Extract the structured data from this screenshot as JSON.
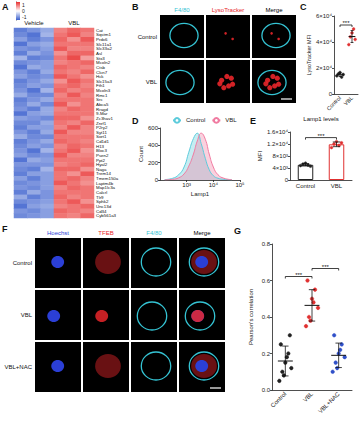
{
  "chart_data": [
    {
      "panel": "A",
      "type": "heatmap",
      "column_groups": [
        {
          "label": "Vehicle",
          "count": 3
        },
        {
          "label": "VBL",
          "count": 3
        }
      ],
      "rows": [
        "Cat",
        "Sqstm1",
        "Prdx6",
        "Slc11a1",
        "Slc33a2",
        "Asl",
        "Stx3",
        "Mcoln2",
        "Ctsb",
        "Clcn7",
        "Hck",
        "Slc15a3",
        "Fth1",
        "Mcoln3",
        "Rmc1",
        "Src",
        "Abca5",
        "Rragd",
        "9-Mar",
        "Zc3hav1",
        "Znrf1",
        "P2ry2",
        "Syt11",
        "Sort1",
        "Cd1d1",
        "H13",
        "Bloc3",
        "Psen2",
        "Ppt2",
        "Hyal2",
        "Naga",
        "Trem14",
        "Tmem150a",
        "Laptm4b",
        "Map1lc3a",
        "Calcrl",
        "Tlr9",
        "Sphk2",
        "Unc13d",
        "Cd34",
        "Cyb561a3"
      ],
      "cells": [
        [
          -1.2,
          -1.0,
          -0.8,
          0.9,
          1.1,
          1.0
        ],
        [
          -1.1,
          -1.3,
          -0.7,
          1.0,
          1.2,
          0.9
        ],
        [
          -0.9,
          -1.2,
          -1.0,
          1.1,
          0.8,
          1.2
        ],
        [
          -1.3,
          -0.9,
          -0.8,
          1.0,
          1.0,
          1.0
        ],
        [
          -1.0,
          -1.1,
          -0.9,
          1.2,
          0.9,
          0.9
        ],
        [
          -1.2,
          -0.8,
          -1.0,
          0.8,
          1.1,
          1.1
        ],
        [
          -0.7,
          -1.2,
          -1.1,
          1.0,
          1.3,
          0.7
        ],
        [
          -1.1,
          -1.0,
          -0.9,
          0.9,
          1.0,
          1.1
        ],
        [
          -1.3,
          -0.8,
          -0.9,
          1.1,
          1.0,
          0.9
        ],
        [
          -1.0,
          -1.2,
          -0.8,
          1.0,
          0.9,
          1.1
        ],
        [
          -0.9,
          -1.1,
          -1.0,
          1.2,
          1.0,
          0.8
        ],
        [
          -1.2,
          -1.0,
          -0.8,
          0.8,
          1.2,
          1.0
        ],
        [
          -1.1,
          -0.9,
          -1.0,
          1.0,
          1.1,
          0.9
        ],
        [
          -1.0,
          -1.3,
          -0.7,
          1.1,
          0.9,
          1.0
        ],
        [
          -0.8,
          -1.1,
          -1.1,
          0.9,
          1.2,
          0.9
        ],
        [
          -1.2,
          -1.0,
          -0.8,
          1.0,
          1.0,
          1.0
        ],
        [
          -1.1,
          -0.8,
          -1.1,
          1.2,
          0.8,
          1.0
        ],
        [
          -1.0,
          -1.2,
          -0.8,
          0.9,
          1.1,
          1.0
        ],
        [
          -1.3,
          -0.9,
          -0.8,
          1.0,
          1.0,
          1.0
        ],
        [
          -0.9,
          -1.0,
          -1.1,
          1.1,
          1.1,
          0.8
        ],
        [
          -1.1,
          -1.1,
          -0.8,
          1.0,
          0.9,
          1.1
        ],
        [
          -1.2,
          -0.9,
          -0.9,
          0.9,
          1.2,
          0.9
        ],
        [
          -1.0,
          -1.2,
          -0.8,
          1.2,
          0.9,
          0.9
        ],
        [
          -0.8,
          -1.1,
          -1.1,
          1.0,
          1.0,
          1.0
        ],
        [
          -1.2,
          -1.0,
          -0.8,
          1.1,
          1.0,
          0.9
        ],
        [
          -1.1,
          -0.9,
          -1.0,
          0.9,
          1.1,
          1.0
        ],
        [
          -1.0,
          -1.3,
          -0.7,
          1.0,
          1.2,
          0.8
        ],
        [
          -0.9,
          -1.1,
          -1.0,
          1.2,
          0.9,
          0.9
        ],
        [
          -1.3,
          -0.8,
          -0.9,
          1.0,
          1.0,
          1.0
        ],
        [
          -1.0,
          -1.0,
          -1.0,
          0.9,
          1.0,
          1.1
        ],
        [
          -1.1,
          -1.2,
          -0.7,
          1.1,
          1.1,
          0.8
        ],
        [
          -1.2,
          -0.9,
          -0.9,
          1.0,
          0.8,
          1.2
        ],
        [
          -0.9,
          -1.2,
          -0.9,
          1.0,
          1.1,
          0.9
        ],
        [
          -1.1,
          -1.0,
          -0.9,
          1.2,
          1.0,
          0.8
        ],
        [
          -1.0,
          -1.1,
          -0.9,
          0.9,
          1.1,
          1.0
        ],
        [
          -1.2,
          -0.8,
          -1.0,
          1.0,
          1.0,
          1.0
        ],
        [
          -0.8,
          -1.2,
          -1.0,
          1.1,
          0.9,
          1.0
        ],
        [
          -1.1,
          -1.0,
          -0.9,
          1.0,
          1.2,
          0.8
        ],
        [
          -1.3,
          -0.9,
          -0.8,
          0.9,
          1.0,
          1.1
        ],
        [
          -1.0,
          -1.1,
          -0.9,
          1.1,
          1.0,
          0.9
        ],
        [
          -1.1,
          -1.0,
          -0.9,
          1.0,
          0.9,
          1.1
        ]
      ],
      "colorbar": {
        "range": [
          -1.5,
          1.5
        ],
        "ticks": [
          -1,
          0,
          1
        ],
        "colors": [
          "#3a5fcd",
          "#ffffff",
          "#e8302f"
        ]
      }
    },
    {
      "panel": "C",
      "type": "scatter",
      "y_label": "LysoTracker MFI",
      "categories": [
        "Control",
        "VBL"
      ],
      "points": [
        [
          14000,
          15500,
          16500,
          13000,
          15000
        ],
        [
          38000,
          44000,
          47000,
          50000,
          42000
        ]
      ],
      "colors": [
        "#222222",
        "#e03030"
      ],
      "ylim": [
        0,
        60000
      ],
      "yticks": [
        0,
        {
          "value": 20000,
          "label": "2×10⁴"
        },
        {
          "value": 40000,
          "label": "4×10⁴"
        },
        {
          "value": 60000,
          "label": "6×10⁴"
        }
      ],
      "annotations": [
        {
          "pair": [
            0,
            1
          ],
          "label": "***"
        }
      ]
    },
    {
      "panel": "D",
      "type": "line",
      "x_label": "Lamp1",
      "y_label": "Count",
      "log": "x",
      "x": [
        150,
        300,
        500,
        800,
        1200,
        1800,
        2500,
        3500,
        5000,
        7000,
        10000,
        15000,
        25000,
        50000
      ],
      "series": [
        {
          "name": "Control",
          "color": "#5ccbdb",
          "values": [
            5,
            20,
            60,
            150,
            320,
            480,
            540,
            420,
            250,
            120,
            50,
            20,
            8,
            2
          ]
        },
        {
          "name": "VBL",
          "color": "#f07aa0",
          "values": [
            2,
            8,
            25,
            70,
            160,
            300,
            450,
            540,
            470,
            300,
            150,
            60,
            20,
            4
          ]
        }
      ],
      "xlim": [
        100,
        100000
      ],
      "xticks": [
        {
          "value": 1000,
          "label": "10³"
        },
        {
          "value": 10000,
          "label": "10⁴"
        },
        {
          "value": 100000,
          "label": "10⁵"
        }
      ],
      "ylim": [
        0,
        600
      ],
      "yticks": [
        0,
        200,
        400,
        600
      ],
      "legend": "top"
    },
    {
      "panel": "E",
      "type": "bar",
      "title": "Lamp1 levels",
      "y_label": "MFI",
      "categories": [
        "Control",
        "VBL"
      ],
      "points": [
        [
          4800,
          5300,
          5600,
          5000,
          4600
        ],
        [
          10800,
          12000,
          12800,
          11500,
          12400
        ]
      ],
      "colors": [
        "#222222",
        "#e03030"
      ],
      "ylim": [
        0,
        16000
      ],
      "yticks": [
        0,
        {
          "value": 4000,
          "label": "4×10³"
        },
        {
          "value": 8000,
          "label": "8×10³"
        },
        {
          "value": 12000,
          "label": "1.2×10⁴"
        },
        {
          "value": 16000,
          "label": "1.6×10⁴"
        }
      ],
      "annotations": [
        {
          "pair": [
            0,
            1
          ],
          "label": "***"
        }
      ]
    },
    {
      "panel": "G",
      "type": "scatter",
      "y_label": "Pearson's correlation",
      "categories": [
        "Control",
        "VBL",
        "VBL+NAC"
      ],
      "points": [
        [
          0.05,
          0.1,
          0.15,
          0.2,
          0.12,
          0.25,
          0.08,
          0.18,
          0.3
        ],
        [
          0.35,
          0.4,
          0.5,
          0.55,
          0.45,
          0.6,
          0.38,
          0.48
        ],
        [
          0.1,
          0.15,
          0.2,
          0.25,
          0.18,
          0.3,
          0.12,
          0.22
        ]
      ],
      "colors": [
        "#222222",
        "#e03030",
        "#3050c8"
      ],
      "ylim": [
        0,
        0.8
      ],
      "yticks": [
        {
          "value": 0,
          "label": "0.0"
        },
        0.2,
        0.4,
        0.6,
        0.8
      ],
      "annotations": [
        {
          "pair": [
            0,
            1
          ],
          "label": "***"
        },
        {
          "pair": [
            1,
            2
          ],
          "label": "***"
        }
      ]
    }
  ],
  "micrographs": [
    {
      "panel": "B",
      "rows": [
        "Control",
        "VBL"
      ],
      "channels": [
        {
          "label": "F4/80",
          "color": "#35c4d4",
          "marker": "ring"
        },
        {
          "label": "LysoTracker",
          "color": "#e8262a",
          "marker": "spots"
        },
        {
          "label": "Merge",
          "color": "#000000",
          "type": "merge"
        }
      ]
    },
    {
      "panel": "F",
      "rows": [
        "Control",
        "VBL",
        "VBL+NAC"
      ],
      "channels": [
        {
          "label": "Hoechst",
          "color": "#2b3fd6",
          "marker": "nucleus"
        },
        {
          "label": "TFEB",
          "color": "#e8262a",
          "marker": "diffuse"
        },
        {
          "label": "F4/80",
          "color": "#35c4d4",
          "marker": "ring"
        },
        {
          "label": "Merge",
          "color": "#000000",
          "type": "merge"
        }
      ]
    }
  ]
}
